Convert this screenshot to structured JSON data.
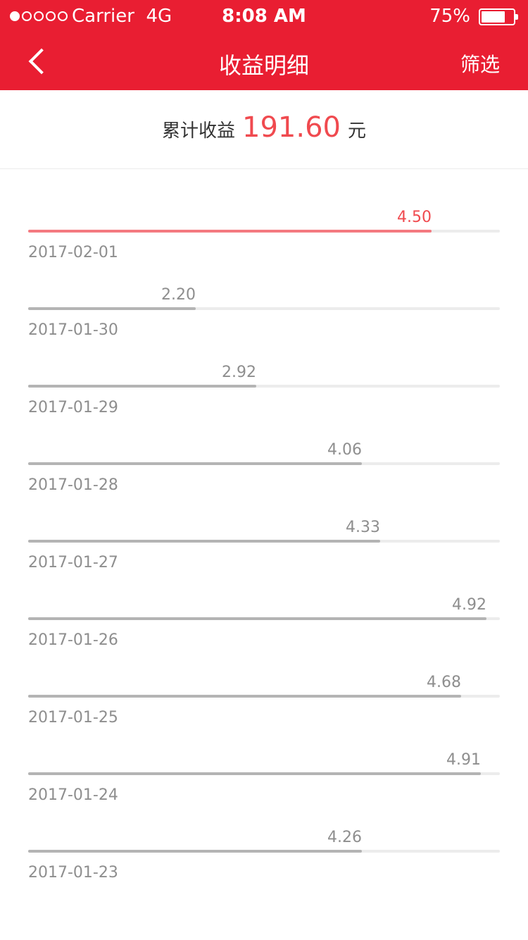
{
  "status": {
    "carrier": "Carrier",
    "network": "4G",
    "time": "8:08 AM",
    "battery": "75%",
    "battery_level": 0.75
  },
  "nav": {
    "title": "收益明细",
    "filter_label": "筛选",
    "back_icon": "chevron-left-icon"
  },
  "summary": {
    "label": "累计收益",
    "amount": "191.60",
    "unit": "元"
  },
  "colors": {
    "header": "#e91e32",
    "highlight": "#f04a4f",
    "bar": "#b4b4b4",
    "track": "#ececec"
  },
  "entries": [
    {
      "date": "2017-02-01",
      "value": "4.50",
      "ratio": 0.855,
      "highlight": true
    },
    {
      "date": "2017-01-30",
      "value": "2.20",
      "ratio": 0.355,
      "highlight": false
    },
    {
      "date": "2017-01-29",
      "value": "2.92",
      "ratio": 0.484,
      "highlight": false
    },
    {
      "date": "2017-01-28",
      "value": "4.06",
      "ratio": 0.707,
      "highlight": false
    },
    {
      "date": "2017-01-27",
      "value": "4.33",
      "ratio": 0.746,
      "highlight": false
    },
    {
      "date": "2017-01-26",
      "value": "4.92",
      "ratio": 0.972,
      "highlight": false
    },
    {
      "date": "2017-01-25",
      "value": "4.68",
      "ratio": 0.918,
      "highlight": false
    },
    {
      "date": "2017-01-24",
      "value": "4.91",
      "ratio": 0.96,
      "highlight": false
    },
    {
      "date": "2017-01-23",
      "value": "4.26",
      "ratio": 0.707,
      "highlight": false
    }
  ]
}
